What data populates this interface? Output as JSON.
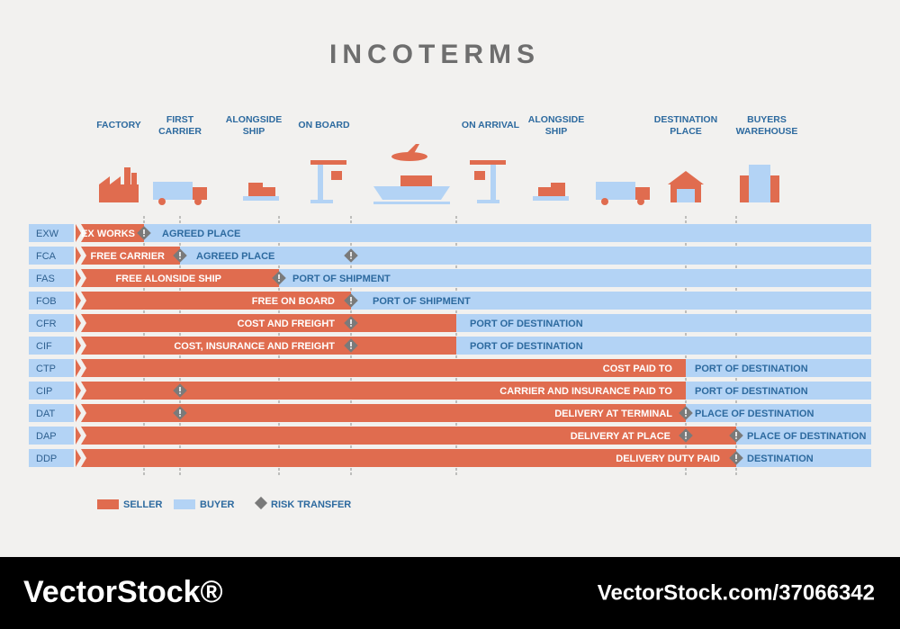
{
  "title": "INCOTERMS",
  "stages": [
    {
      "lines": [
        "FACTORY"
      ]
    },
    {
      "lines": [
        "FIRST",
        "CARRIER"
      ]
    },
    {
      "lines": [
        "ALONGSIDE",
        "SHIP"
      ]
    },
    {
      "lines": [
        "ON BOARD"
      ]
    },
    {
      "lines": [
        "ON ARRIVAL"
      ]
    },
    {
      "lines": [
        "ALONGSIDE",
        "SHIP"
      ]
    },
    {
      "lines": [
        "DESTINATION",
        "PLACE"
      ]
    },
    {
      "lines": [
        "BUYERS",
        "WAREHOUSE"
      ]
    }
  ],
  "rows": [
    {
      "code": "EXW",
      "seller": "EX WORKS",
      "buyer": "AGREED PLACE"
    },
    {
      "code": "FCA",
      "seller": "FREE CARRIER",
      "buyer": "AGREED PLACE"
    },
    {
      "code": "FAS",
      "seller": "FREE ALONSIDE SHIP",
      "buyer": "PORT OF SHIPMENT"
    },
    {
      "code": "FOB",
      "seller": "FREE ON BOARD",
      "buyer": "PORT OF SHIPMENT"
    },
    {
      "code": "CFR",
      "seller": "COST AND FREIGHT",
      "buyer": "PORT OF DESTINATION"
    },
    {
      "code": "CIF",
      "seller": "COST, INSURANCE AND FREIGHT",
      "buyer": "PORT OF DESTINATION"
    },
    {
      "code": "CTP",
      "seller": "COST PAID TO",
      "buyer": "PORT OF DESTINATION"
    },
    {
      "code": "CIP",
      "seller": "CARRIER AND INSURANCE PAID TO",
      "buyer": "PORT OF DESTINATION"
    },
    {
      "code": "DAT",
      "seller": "DELIVERY AT TERMINAL",
      "buyer": "PLACE OF DESTINATION"
    },
    {
      "code": "DAP",
      "seller": "DELIVERY AT PLACE",
      "buyer": "PLACE OF DESTINATION"
    },
    {
      "code": "DDP",
      "seller": "DELIVERY DUTY PAID",
      "buyer": "DESTINATION"
    }
  ],
  "legend": {
    "seller": "SELLER",
    "buyer": "BUYER",
    "risk": "RISK TRANSFER"
  },
  "footer": {
    "brand": "VectorStock®",
    "id": "VectorStock.com/37066342"
  }
}
